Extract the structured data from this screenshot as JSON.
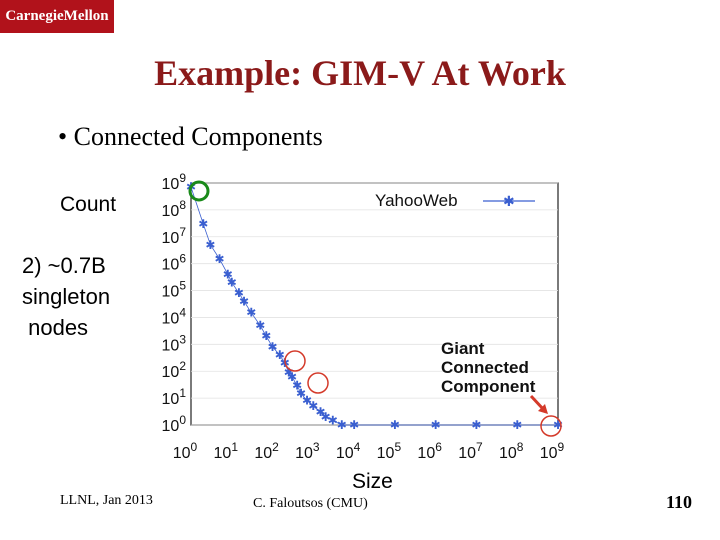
{
  "slide": {
    "logo_text": "CarnegieMellon",
    "title": "Example: GIM-V At Work",
    "bullet": "• Connected Components",
    "y_axis_label": "Count",
    "annotation_lines": [
      "2) ~0.7B",
      "singleton",
      " nodes"
    ],
    "x_axis_label": "Size",
    "footer_left": "LLNL, Jan 2013",
    "footer_center": "C. Faloutsos (CMU)",
    "page_number": "110"
  },
  "chart_data": {
    "type": "scatter",
    "scale": "log-log",
    "xlim": [
      1,
      1000000000
    ],
    "ylim": [
      1,
      1000000000
    ],
    "x_ticks": [
      "10",
      "10",
      "10",
      "10",
      "10",
      "10",
      "10",
      "10",
      "10",
      "10"
    ],
    "x_tick_exponents": [
      "0",
      "1",
      "2",
      "3",
      "4",
      "5",
      "6",
      "7",
      "8",
      "9"
    ],
    "y_ticks": [
      "10",
      "10",
      "10",
      "10",
      "10",
      "10",
      "10",
      "10",
      "10",
      "10"
    ],
    "y_tick_exponents": [
      "0",
      "1",
      "2",
      "3",
      "4",
      "5",
      "6",
      "7",
      "8",
      "9"
    ],
    "legend": "top-right",
    "series": [
      {
        "name": "YahooWeb",
        "color": "#3a5fd0",
        "x": [
          1,
          2,
          3,
          5,
          8,
          10,
          15,
          20,
          30,
          50,
          70,
          100,
          150,
          200,
          250,
          300,
          400,
          500,
          700,
          1000,
          1500,
          2000,
          3000,
          5000,
          10000,
          100000,
          1000000,
          10000000,
          100000000,
          1000000000
        ],
        "y": [
          700000000,
          30000000,
          5000000,
          1500000,
          400000,
          200000,
          80000,
          40000,
          15000,
          5000,
          2000,
          800,
          400,
          200,
          90,
          60,
          30,
          15,
          8,
          5,
          3,
          2,
          1.5,
          1,
          1,
          1,
          1,
          1,
          1,
          1
        ]
      }
    ],
    "annotations": [
      {
        "text": "Giant",
        "kind": "label"
      },
      {
        "text": "Connected",
        "kind": "label"
      },
      {
        "text": "Component",
        "kind": "label"
      }
    ],
    "highlight_colors": {
      "green_circle": "#1a8a1a",
      "red_circle": "#d43a2a",
      "arrow": "#d43a2a"
    }
  }
}
